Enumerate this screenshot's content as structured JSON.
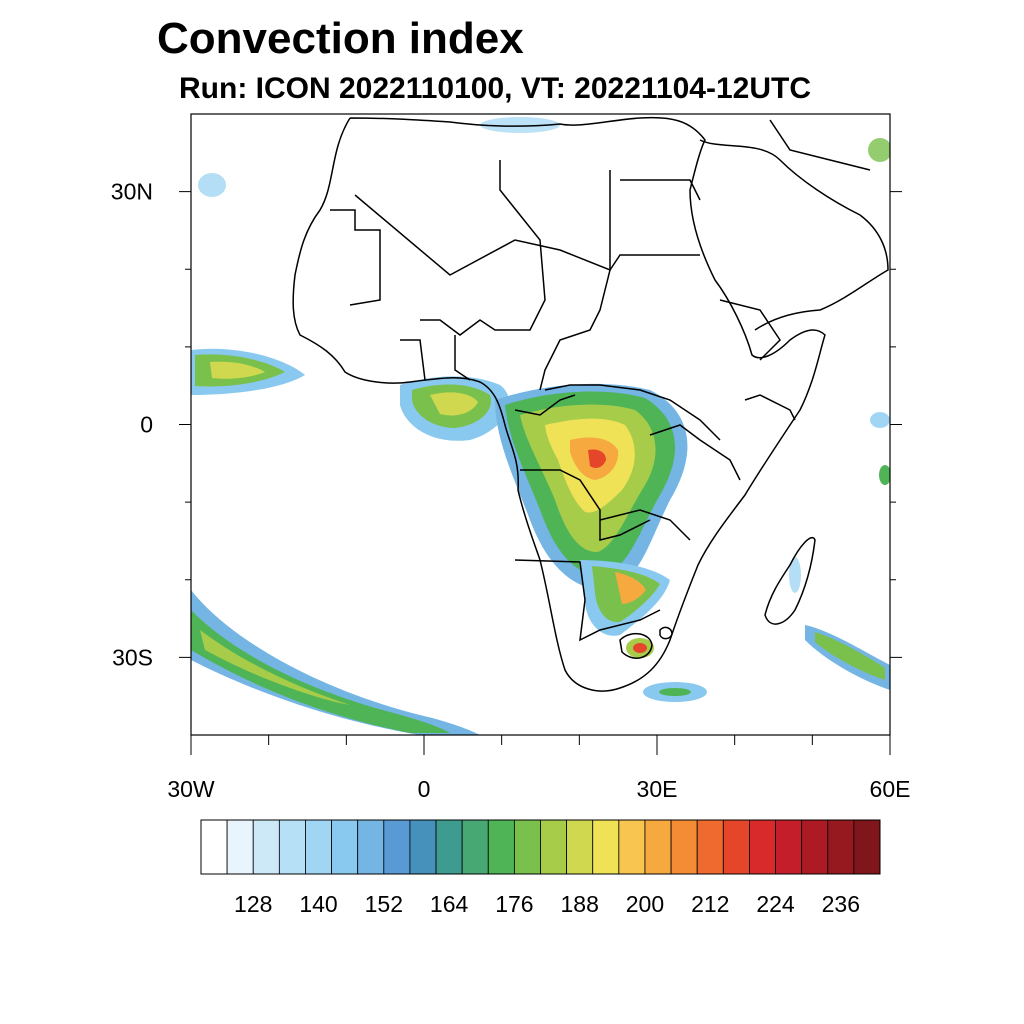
{
  "title": "Convection index",
  "subtitle": "Run: ICON 2022110100,  VT: 20221104-12UTC",
  "map": {
    "region": "Africa",
    "lon_range": [
      -30,
      60
    ],
    "lat_range": [
      -40,
      40
    ],
    "lat_ticks": [
      {
        "label": "30N",
        "lat": 30
      },
      {
        "label": "0",
        "lat": 0
      },
      {
        "label": "30S",
        "lat": -30
      }
    ],
    "lon_ticks": [
      {
        "label": "30W",
        "lon": -30
      },
      {
        "label": "0",
        "lon": 0
      },
      {
        "label": "30E",
        "lon": 30
      },
      {
        "label": "60E",
        "lon": 60
      }
    ],
    "minor_lon_ticks": [
      -20,
      -10,
      10,
      20,
      40,
      50
    ],
    "minor_lat_ticks": [
      20,
      10,
      -10,
      -20
    ]
  },
  "colorbar": {
    "colors": [
      "#ffffff",
      "#e8f5fc",
      "#cde9f7",
      "#b6e0f6",
      "#a0d6f3",
      "#8ac9ef",
      "#74b5e4",
      "#5a9ad4",
      "#4591bc",
      "#3e9b8f",
      "#47a873",
      "#4fb456",
      "#79c04c",
      "#a6cc4a",
      "#cfd84f",
      "#efe257",
      "#f8c650",
      "#f6a93f",
      "#f48c35",
      "#ef6a2e",
      "#e5462a",
      "#d82a2a",
      "#c41e2a",
      "#ac1a24",
      "#961920",
      "#80161b"
    ],
    "labels": [
      "128",
      "140",
      "152",
      "164",
      "176",
      "188",
      "200",
      "212",
      "224",
      "236"
    ]
  }
}
